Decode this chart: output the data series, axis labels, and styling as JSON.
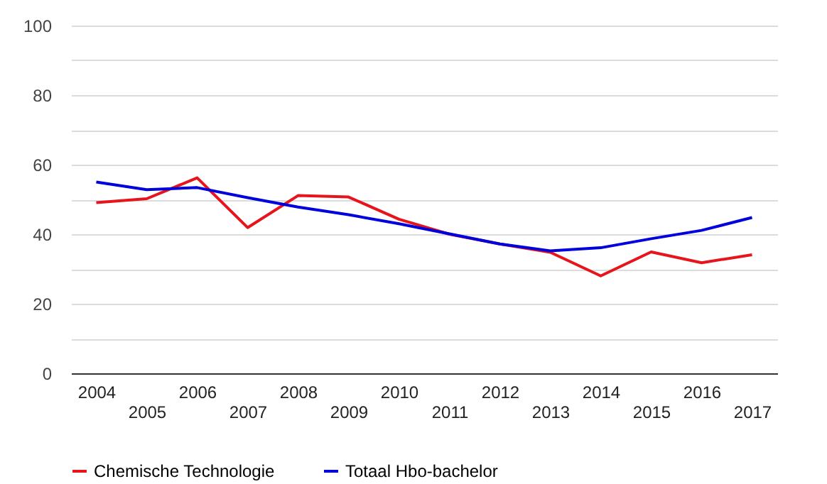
{
  "chart_data": {
    "type": "line",
    "categories": [
      "2004",
      "2005",
      "2006",
      "2007",
      "2008",
      "2009",
      "2010",
      "2011",
      "2012",
      "2013",
      "2014",
      "2015",
      "2016",
      "2017"
    ],
    "series": [
      {
        "name": "Chemische Technologie",
        "color": "#e8141c",
        "values": [
          49.1,
          50.2,
          56.2,
          41.9,
          51.1,
          50.7,
          44.3,
          40,
          37.2,
          34.8,
          28,
          34.9,
          31.8,
          34.1
        ]
      },
      {
        "name": "Totaal Hbo-bachelor",
        "color": "#0000dd",
        "values": [
          55,
          52.8,
          53.4,
          50.5,
          47.8,
          45.6,
          43,
          40.1,
          37.2,
          35.2,
          36.1,
          38.7,
          41.1,
          44.8
        ]
      }
    ],
    "ylim": [
      0,
      100
    ],
    "yticks": [
      0,
      {
        "value": 10,
        "label": null
      },
      20,
      {
        "value": 30,
        "label": null
      },
      40,
      {
        "value": 50,
        "label": null
      },
      60,
      {
        "value": 70,
        "label": null
      },
      80,
      {
        "value": 90,
        "label": null
      },
      100
    ],
    "grid": "y",
    "legend": "bottom",
    "marker": "none",
    "line_style": "solid"
  }
}
